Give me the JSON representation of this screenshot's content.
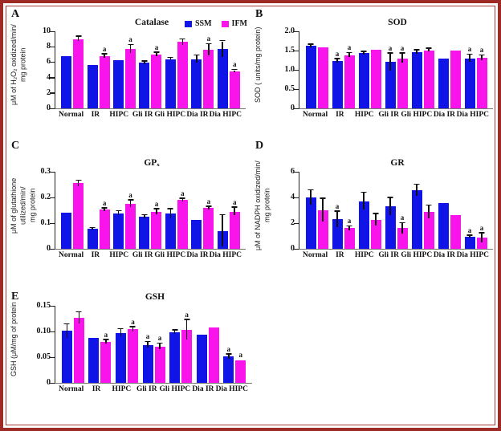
{
  "figure": {
    "series_names": [
      "SSM",
      "IFM"
    ],
    "colors": {
      "ssm": "#1114e6",
      "ifm": "#f914ec",
      "frame": "#9e2a25"
    }
  },
  "chart_data": [
    {
      "type": "bar",
      "panel": "A",
      "title": "Catalase",
      "ylabel_line1": "μM of H₂O₂ oxidized/min/",
      "ylabel_line2": "mg protein",
      "ylim": [
        0,
        10
      ],
      "yticks": [
        {
          "label": "0",
          "value": 0
        },
        {
          "label": "2",
          "value": 2
        },
        {
          "label": "4",
          "value": 4
        },
        {
          "label": "6",
          "value": 6
        },
        {
          "label": "8",
          "value": 8
        },
        {
          "label": "10",
          "value": 10
        }
      ],
      "categories": [
        "Normal",
        "IR",
        "HIPC",
        "Gli IR",
        "Gli HIPC",
        "Dia IR",
        "Dia HIPC"
      ],
      "legend": [
        {
          "label": "SSM",
          "color": "#1114e6"
        },
        {
          "label": "IFM",
          "color": "#f914ec"
        }
      ],
      "series": [
        {
          "name": "SSM",
          "color": "#1114e6",
          "values": [
            6.8,
            5.6,
            6.3,
            5.9,
            6.4,
            6.4,
            7.7
          ],
          "errors": [
            0,
            0,
            0,
            0.15,
            0.15,
            0.45,
            1.0
          ],
          "sig": [
            "",
            "",
            "",
            "",
            "",
            "",
            ""
          ]
        },
        {
          "name": "IFM",
          "color": "#f914ec",
          "values": [
            9.0,
            6.8,
            7.7,
            7.0,
            8.6,
            7.6,
            4.8
          ],
          "errors": [
            0.3,
            0.2,
            0.5,
            0.2,
            0.35,
            0.7,
            0.15
          ],
          "sig": [
            "",
            "a",
            "a",
            "a",
            "",
            "a",
            "a"
          ]
        }
      ]
    },
    {
      "type": "bar",
      "panel": "B",
      "title": "SOD",
      "ylabel_line1": "SOD ( units/mg protein)",
      "ylabel_line2": "",
      "ylim": [
        0,
        2
      ],
      "yticks": [
        {
          "label": "0",
          "value": 0
        },
        {
          "label": "0.5",
          "value": 0.5
        },
        {
          "label": "1.0",
          "value": 1.0
        },
        {
          "label": "1.5",
          "value": 1.5
        },
        {
          "label": "2.0",
          "value": 2.0
        }
      ],
      "categories": [
        "Normal",
        "IR",
        "HIPC",
        "Gli IR",
        "Gli HIPC",
        "Dia IR",
        "Dia HIPC"
      ],
      "series": [
        {
          "name": "SSM",
          "color": "#1114e6",
          "values": [
            1.62,
            1.23,
            1.43,
            1.2,
            1.46,
            1.29,
            1.3
          ],
          "errors": [
            0.03,
            0.05,
            0.03,
            0.22,
            0.05,
            0,
            0.09
          ],
          "sig": [
            "",
            "a",
            "",
            "a",
            "",
            "",
            "a"
          ]
        },
        {
          "name": "IFM",
          "color": "#f914ec",
          "values": [
            1.58,
            1.38,
            1.53,
            1.3,
            1.51,
            1.5,
            1.31
          ],
          "errors": [
            0,
            0.05,
            0,
            0.12,
            0.04,
            0,
            0.06
          ],
          "sig": [
            "",
            "a",
            "",
            "a",
            "",
            "",
            "a"
          ]
        }
      ]
    },
    {
      "type": "bar",
      "panel": "C",
      "title": "GPₓ",
      "ylabel_line1": "μM of glutathione utilized/min/",
      "ylabel_line2": "mg protein",
      "ylim": [
        0,
        0.3
      ],
      "yticks": [
        {
          "label": "0",
          "value": 0
        },
        {
          "label": "0.1",
          "value": 0.1
        },
        {
          "label": "0.2",
          "value": 0.2
        },
        {
          "label": "0.3",
          "value": 0.3
        }
      ],
      "categories": [
        "Normal",
        "IR",
        "HIPC",
        "Gli IR",
        "Gli HIPC",
        "Dia IR",
        "Dia HIPC"
      ],
      "series": [
        {
          "name": "SSM",
          "color": "#1114e6",
          "values": [
            0.14,
            0.078,
            0.138,
            0.124,
            0.136,
            0.113,
            0.07
          ],
          "errors": [
            0,
            0.003,
            0.008,
            0.006,
            0.018,
            0,
            0.06
          ],
          "sig": [
            "",
            "",
            "",
            "",
            "",
            "",
            ""
          ]
        },
        {
          "name": "IFM",
          "color": "#f914ec",
          "values": [
            0.255,
            0.152,
            0.176,
            0.144,
            0.19,
            0.158,
            0.145
          ],
          "errors": [
            0.01,
            0.005,
            0.012,
            0.01,
            0.005,
            0.005,
            0.015
          ],
          "sig": [
            "",
            "a",
            "a",
            "a",
            "a",
            "a",
            "a"
          ]
        }
      ]
    },
    {
      "type": "bar",
      "panel": "D",
      "title": "GR",
      "ylabel_line1": "μM of NADPH oxidized/min/",
      "ylabel_line2": "mg protein",
      "ylim": [
        0,
        6
      ],
      "yticks": [
        {
          "label": "0",
          "value": 0
        },
        {
          "label": "2",
          "value": 2
        },
        {
          "label": "4",
          "value": 4
        },
        {
          "label": "6",
          "value": 6
        }
      ],
      "categories": [
        "Normal",
        "IR",
        "HIPC",
        "Gli IR",
        "Gli HIPC",
        "Dia IR",
        "Dia HIPC"
      ],
      "series": [
        {
          "name": "SSM",
          "color": "#1114e6",
          "values": [
            4.0,
            2.3,
            3.7,
            3.3,
            4.55,
            3.55,
            0.95
          ],
          "errors": [
            0.55,
            0.6,
            0.65,
            0.65,
            0.45,
            0,
            0.08
          ],
          "sig": [
            "",
            "a",
            "",
            "",
            "",
            "",
            "a"
          ]
        },
        {
          "name": "IFM",
          "color": "#f914ec",
          "values": [
            3.0,
            1.6,
            2.25,
            1.6,
            2.85,
            2.6,
            0.85
          ],
          "errors": [
            0.9,
            0.15,
            0.45,
            0.4,
            0.5,
            0,
            0.35
          ],
          "sig": [
            "",
            "a",
            "",
            "a",
            "",
            "",
            "a"
          ]
        }
      ]
    },
    {
      "type": "bar",
      "panel": "E",
      "title": "GSH",
      "ylabel_line1": "GSH (μM/mg of protein",
      "ylabel_line2": "",
      "ylim": [
        0,
        0.15
      ],
      "yticks": [
        {
          "label": "0",
          "value": 0
        },
        {
          "label": "0.05",
          "value": 0.05
        },
        {
          "label": "0.10",
          "value": 0.1
        },
        {
          "label": "0.15",
          "value": 0.15
        }
      ],
      "categories": [
        "Normal",
        "IR",
        "HIPC",
        "Gli IR",
        "Gli HIPC",
        "Dia IR",
        "Dia HIPC"
      ],
      "series": [
        {
          "name": "SSM",
          "color": "#1114e6",
          "values": [
            0.101,
            0.088,
            0.097,
            0.074,
            0.099,
            0.093,
            0.051
          ],
          "errors": [
            0.013,
            0,
            0.007,
            0.005,
            0.003,
            0,
            0.004
          ],
          "sig": [
            "",
            "",
            "",
            "a",
            "",
            "",
            "a"
          ]
        },
        {
          "name": "IFM",
          "color": "#f914ec",
          "values": [
            0.126,
            0.08,
            0.104,
            0.071,
            0.103,
            0.108,
            0.043
          ],
          "errors": [
            0.011,
            0.003,
            0.004,
            0.005,
            0.019,
            0,
            0
          ],
          "sig": [
            "",
            "a",
            "a",
            "a",
            "a",
            "",
            "a"
          ]
        }
      ]
    }
  ]
}
